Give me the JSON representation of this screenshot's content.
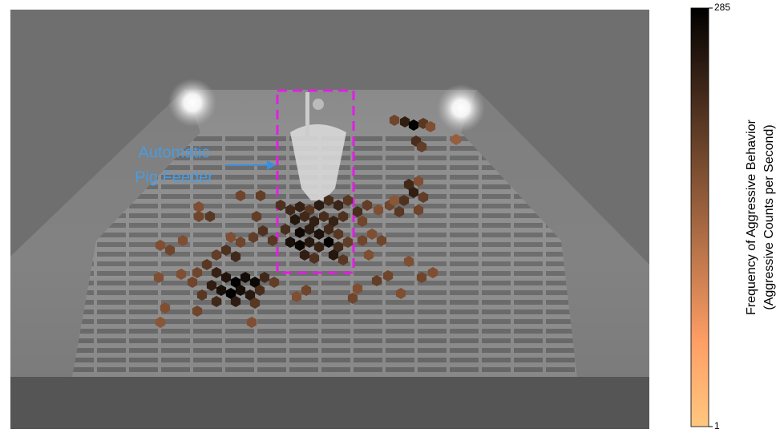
{
  "chart_data": {
    "type": "hexbin",
    "annotation": [
      "Automatic",
      "Pig Feeder"
    ],
    "colorbar_label": [
      "Frequency of Aggressive Behavior",
      "(Aggressive Counts per Second)"
    ],
    "clim": [
      1,
      285
    ],
    "cticks": [
      1,
      285
    ],
    "log_scale": true,
    "colormap": "copper_r",
    "xlim": [
      0,
      797
    ],
    "ylim": [
      523,
      0
    ],
    "x": [
      479,
      492,
      503,
      515,
      524,
      506,
      513,
      556,
      497,
      509,
      503,
      515,
      491,
      509,
      485,
      473,
      459,
      445,
      433,
      439,
      479,
      287,
      312,
      235,
      249,
      235,
      307,
      337,
      349,
      361,
      373,
      385,
      397,
      409,
      421,
      355,
      367,
      379,
      391,
      403,
      415,
      343,
      361,
      373,
      385,
      397,
      409,
      349,
      361,
      373,
      385,
      397,
      409,
      421,
      367,
      379,
      403,
      415,
      327,
      315,
      303,
      287,
      275,
      439,
      451,
      463,
      447,
      187,
      199,
      215,
      257,
      269,
      281,
      245,
      233,
      257,
      269,
      281,
      293,
      305,
      317,
      329,
      251,
      263,
      275,
      287,
      299,
      311,
      239,
      257,
      281,
      305,
      227,
      213,
      233,
      193,
      187,
      301,
      185,
      427,
      433,
      457,
      471,
      487,
      513,
      527,
      369,
      357,
      497
    ],
    "y": [
      138,
      140,
      144,
      142,
      146,
      164,
      171,
      162,
      218,
      214,
      228,
      234,
      238,
      250,
      252,
      244,
      250,
      244,
      252,
      264,
      238,
      232,
      232,
      246,
      258,
      258,
      258,
      244,
      250,
      246,
      250,
      244,
      238,
      244,
      238,
      262,
      258,
      264,
      258,
      264,
      258,
      274,
      278,
      274,
      280,
      274,
      280,
      290,
      294,
      290,
      296,
      290,
      296,
      290,
      306,
      310,
      306,
      312,
      288,
      276,
      284,
      290,
      284,
      288,
      280,
      288,
      306,
      294,
      300,
      288,
      306,
      300,
      308,
      318,
      328,
      328,
      334,
      340,
      334,
      340,
      334,
      340,
      344,
      350,
      354,
      350,
      356,
      350,
      356,
      364,
      364,
      366,
      340,
      330,
      376,
      372,
      390,
      390,
      334,
      360,
      348,
      338,
      332,
      354,
      334,
      328,
      350,
      358,
      314
    ],
    "values": [
      40,
      120,
      260,
      60,
      30,
      80,
      50,
      20,
      90,
      30,
      120,
      50,
      70,
      40,
      60,
      40,
      30,
      50,
      80,
      40,
      25,
      40,
      50,
      30,
      60,
      40,
      50,
      70,
      90,
      110,
      60,
      130,
      80,
      100,
      60,
      150,
      90,
      120,
      80,
      110,
      70,
      80,
      220,
      130,
      170,
      90,
      60,
      180,
      240,
      140,
      110,
      260,
      90,
      50,
      120,
      70,
      150,
      60,
      60,
      70,
      50,
      40,
      30,
      40,
      30,
      40,
      30,
      30,
      40,
      30,
      50,
      70,
      90,
      60,
      40,
      110,
      160,
      270,
      200,
      230,
      90,
      50,
      120,
      180,
      285,
      190,
      140,
      80,
      60,
      90,
      130,
      60,
      40,
      30,
      40,
      30,
      25,
      30,
      30,
      40,
      30,
      50,
      40,
      30,
      40,
      30,
      40,
      30,
      30
    ]
  }
}
